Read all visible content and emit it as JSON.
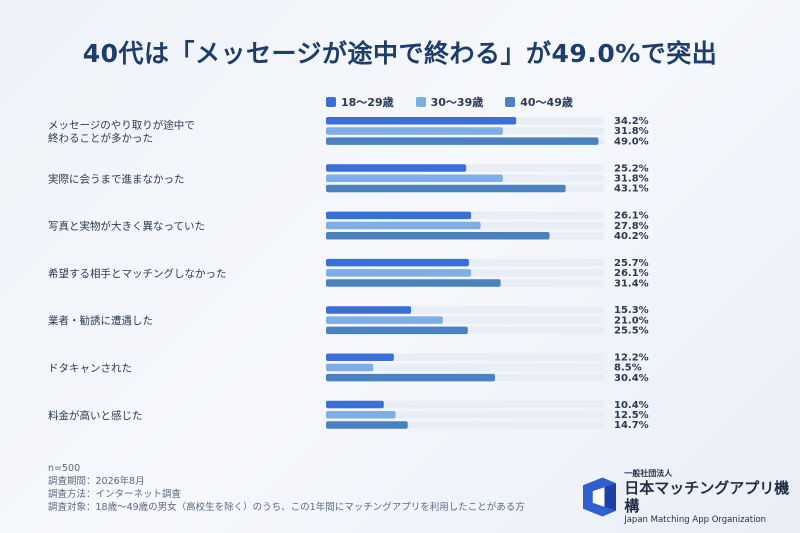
{
  "title": "40代は「メッセージが途中で終わる」が49.0%で突出",
  "colors": {
    "series_1": "#3a6fd8",
    "series_2": "#7eaee6",
    "series_3": "#4a82c0",
    "track": "#e9edf5",
    "label_text": "#2b3a55"
  },
  "chart_data": {
    "type": "bar",
    "orientation": "horizontal",
    "categories": [
      [
        "メッセージのやり取りが途中で",
        "終わることが多かった"
      ],
      [
        "実際に会うまで進まなかった"
      ],
      [
        "写真と実物が大きく異なっていた"
      ],
      [
        "希望する相手とマッチングしなかった"
      ],
      [
        "業者・勧誘に遭遇した"
      ],
      [
        "ドタキャンされた"
      ],
      [
        "料金が高いと感じた"
      ]
    ],
    "series": [
      {
        "name": "18〜29歳",
        "values": [
          34.2,
          25.2,
          26.1,
          25.7,
          15.3,
          12.2,
          10.4
        ]
      },
      {
        "name": "30〜39歳",
        "values": [
          31.8,
          31.8,
          27.8,
          26.1,
          21.0,
          8.5,
          12.5
        ]
      },
      {
        "name": "40〜49歳",
        "values": [
          49.0,
          43.1,
          40.2,
          31.4,
          25.5,
          30.4,
          14.7
        ]
      }
    ],
    "xlim": [
      0,
      50
    ],
    "value_suffix": "%",
    "legend_position": "top"
  },
  "footer": {
    "lines": [
      "n=500",
      "調査期間：2026年8月",
      "調査方法：インターネット調査",
      "調査対象：18歳〜49歳の男女（高校生を除く）のうち、この1年間にマッチングアプリを利用したことがある方"
    ]
  },
  "logo": {
    "small": "一般社団法人",
    "main": "日本マッチングアプリ機構",
    "en": "Japan Matching App Organization"
  }
}
